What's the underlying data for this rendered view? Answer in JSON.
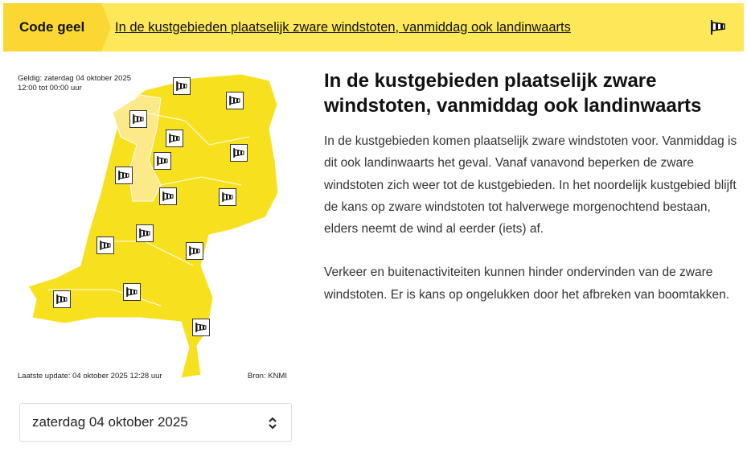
{
  "banner": {
    "code": "Code geel",
    "headline": "In de kustgebieden plaatselijk zware windstoten, vanmiddag ook landinwaarts",
    "icon": "windsock-icon"
  },
  "map": {
    "valid_line1": "Geldig: zaterdag 04 oktober 2025",
    "valid_line2": "12:00 tot 00:00 uur",
    "last_update": "Laatste update: 04 oktober 2025 12:28 uur",
    "source": "Bron: KNMI",
    "color_yellow": "#f7e11f",
    "color_light": "#fbe98a"
  },
  "date_select": {
    "value": "zaterdag 04 oktober 2025"
  },
  "article": {
    "title": "In de kustgebieden plaatselijk zware windstoten, vanmiddag ook landinwaarts",
    "paragraphs": [
      "In de kustgebieden komen plaatselijk zware windstoten voor. Vanmiddag is dit ook landinwaarts het geval. Vanaf vanavond beperken de zware windstoten zich weer tot de kustgebieden. In het noordelijk kustgebied blijft de kans op zware windstoten tot halverwege morgenochtend bestaan, elders neemt de wind al eerder (iets) af.",
      "Verkeer en buitenactiviteiten kunnen hinder ondervinden van de zware windstoten. Er is kans op ongelukken door het afbreken van boomtakken."
    ]
  }
}
